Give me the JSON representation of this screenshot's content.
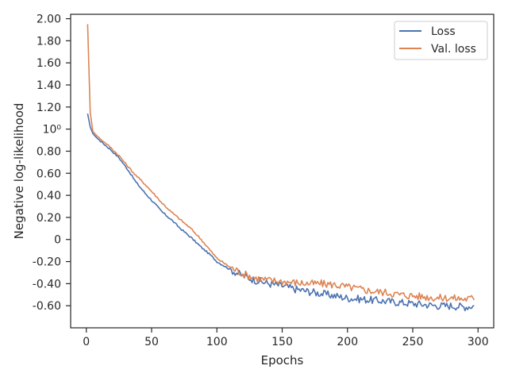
{
  "chart_data": {
    "type": "line",
    "xlabel": "Epochs",
    "ylabel": "Negative log-likelihood",
    "xlim": [
      -12,
      312
    ],
    "ylim": [
      -0.8,
      2.04
    ],
    "x_ticks": [
      0,
      50,
      100,
      150,
      200,
      250,
      300
    ],
    "x_tick_labels": [
      "0",
      "50",
      "100",
      "150",
      "200",
      "250",
      "300"
    ],
    "y_ticks": [
      2.0,
      1.8,
      1.6,
      1.4,
      1.2,
      1.0,
      0.8,
      0.6,
      0.4,
      0.2,
      0.0,
      -0.2,
      -0.4,
      -0.6
    ],
    "y_tick_labels": [
      "2.00",
      "1.80",
      "1.60",
      "1.40",
      "1.20",
      "10⁰",
      "0.80",
      "0.60",
      "0.40",
      "0.20",
      "0",
      "-0.20",
      "-0.40",
      "-0.60"
    ],
    "grid": false,
    "legend_position": "top-right",
    "series": [
      {
        "name": "Loss",
        "color": "#4c72b0",
        "x": [
          1,
          3,
          5,
          8,
          12,
          18,
          25,
          32,
          38,
          45,
          52,
          58,
          65,
          72,
          80,
          88,
          95,
          100,
          110,
          120,
          130,
          140,
          150,
          160,
          170,
          180,
          190,
          200,
          210,
          220,
          230,
          240,
          250,
          260,
          270,
          280,
          290,
          297
        ],
        "values": [
          1.14,
          1.02,
          0.96,
          0.92,
          0.88,
          0.82,
          0.74,
          0.63,
          0.52,
          0.42,
          0.33,
          0.25,
          0.18,
          0.1,
          0.02,
          -0.07,
          -0.14,
          -0.2,
          -0.27,
          -0.33,
          -0.37,
          -0.4,
          -0.42,
          -0.45,
          -0.47,
          -0.49,
          -0.51,
          -0.53,
          -0.54,
          -0.55,
          -0.56,
          -0.57,
          -0.58,
          -0.59,
          -0.6,
          -0.6,
          -0.61,
          -0.6
        ]
      },
      {
        "name": "Val. loss",
        "color": "#dd8452",
        "x": [
          1,
          2,
          3,
          5,
          8,
          12,
          18,
          25,
          32,
          38,
          45,
          52,
          58,
          65,
          72,
          80,
          88,
          95,
          100,
          110,
          120,
          130,
          140,
          150,
          160,
          170,
          180,
          190,
          200,
          210,
          220,
          230,
          240,
          250,
          260,
          270,
          280,
          290,
          297
        ],
        "values": [
          1.95,
          1.55,
          1.15,
          0.98,
          0.94,
          0.9,
          0.84,
          0.76,
          0.66,
          0.58,
          0.5,
          0.41,
          0.33,
          0.25,
          0.18,
          0.1,
          0.0,
          -0.1,
          -0.17,
          -0.25,
          -0.31,
          -0.35,
          -0.37,
          -0.38,
          -0.39,
          -0.4,
          -0.4,
          -0.41,
          -0.43,
          -0.45,
          -0.47,
          -0.48,
          -0.5,
          -0.51,
          -0.52,
          -0.53,
          -0.53,
          -0.54,
          -0.53
        ]
      }
    ]
  }
}
